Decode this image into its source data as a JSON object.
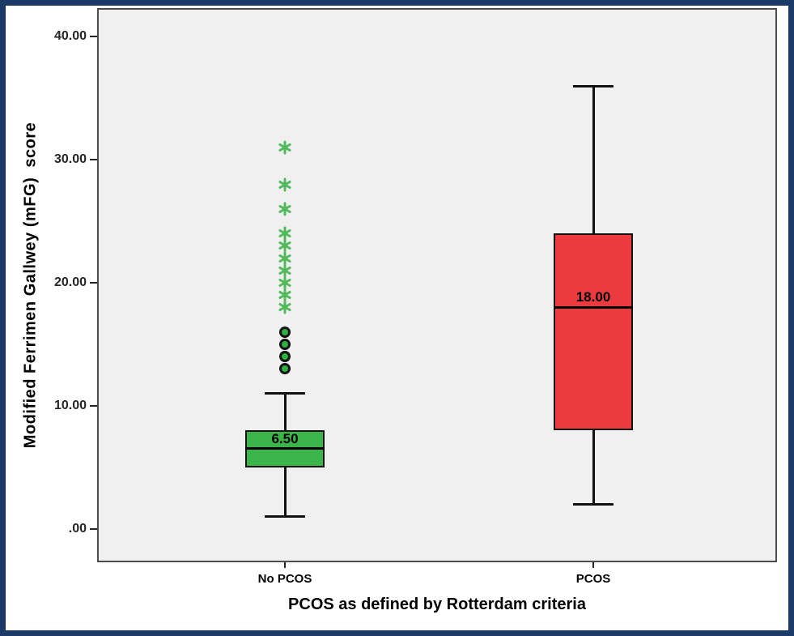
{
  "style": {
    "frame_color": "#1B3A66",
    "canvas_color": "#FFFFFF",
    "plot_background": "#F0F0F0",
    "line_color": "#111111"
  },
  "chart_data": {
    "type": "boxplot",
    "title": "",
    "xlabel": "PCOS as defined by Rotterdam criteria",
    "ylabel": "Modified Ferrimen Gallwey (mFG)  score",
    "ylim": [
      -2.6,
      42.2
    ],
    "grid": false,
    "legend": "none",
    "yticks": [
      {
        "value": 40,
        "label": "40.00"
      },
      {
        "value": 30,
        "label": "30.00"
      },
      {
        "value": 20,
        "label": "20.00"
      },
      {
        "value": 10,
        "label": "10.00"
      },
      {
        "value": 0,
        "label": ".00"
      }
    ],
    "categories": [
      "No PCOS",
      "PCOS"
    ],
    "series": [
      {
        "category": "No PCOS",
        "box_color": "#3BB54A",
        "circle_fill": "#2FAF44",
        "asterisk_color": "#52BA5C",
        "whisker_low": 1,
        "q1": 5,
        "median": 6.5,
        "q3": 8,
        "whisker_high": 11,
        "median_label": "6.50",
        "outliers_circle": [
          13,
          14,
          15,
          16
        ],
        "outliers_asterisk": [
          18,
          19,
          20,
          21,
          22,
          23,
          24,
          26,
          28,
          31
        ]
      },
      {
        "category": "PCOS",
        "box_color": "#EC3B3E",
        "circle_fill": "#EC3B3E",
        "asterisk_color": "#EC3B3E",
        "whisker_low": 2,
        "q1": 8,
        "median": 18,
        "q3": 24,
        "whisker_high": 36,
        "median_label": "18.00",
        "outliers_circle": [],
        "outliers_asterisk": []
      }
    ]
  }
}
